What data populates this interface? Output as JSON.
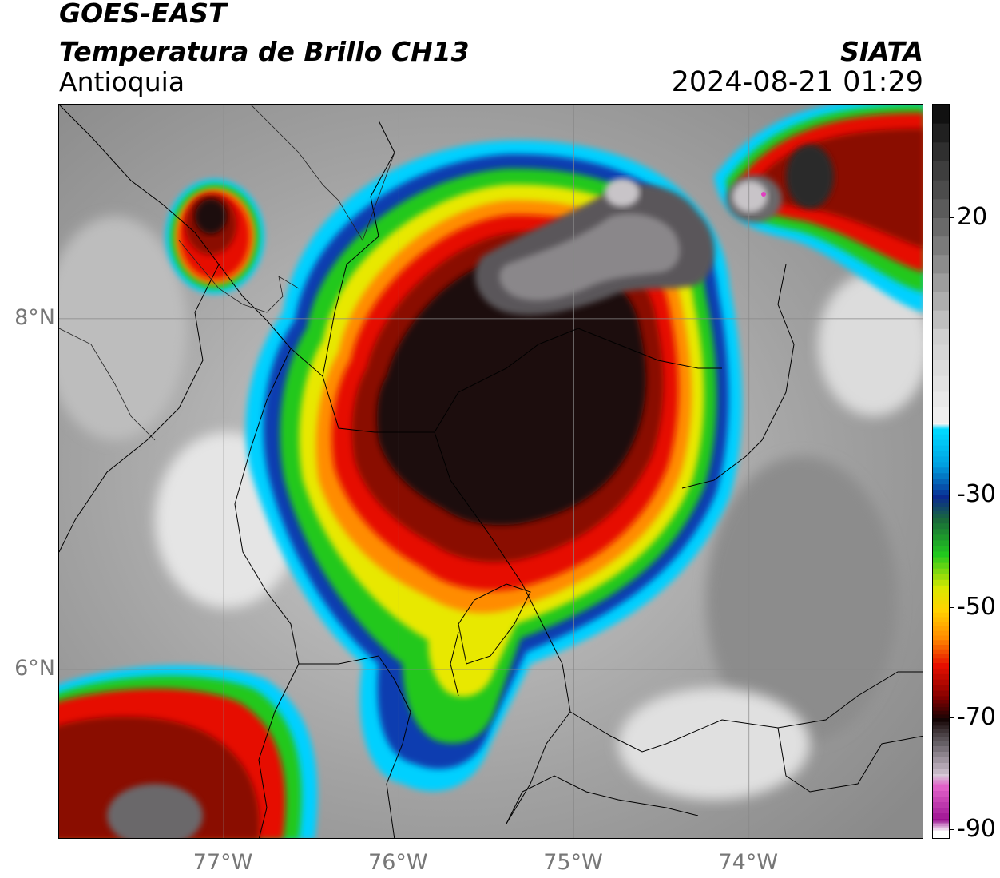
{
  "header": {
    "satellite": "GOES-EAST",
    "product": "Temperatura de Brillo CH13",
    "region": "Antioquia",
    "agency": "SIATA",
    "datetime": "2024-08-21 01:29"
  },
  "map": {
    "latitude_labels": [
      {
        "id": "8n",
        "text": "8°N",
        "value": 8
      },
      {
        "id": "6n",
        "text": "6°N",
        "value": 6
      }
    ],
    "longitude_labels": [
      {
        "id": "77w",
        "text": "77°W",
        "value": -77
      },
      {
        "id": "76w",
        "text": "76°W",
        "value": -76
      },
      {
        "id": "75w",
        "text": "75°W",
        "value": -75
      },
      {
        "id": "74w",
        "text": "74°W",
        "value": -74
      }
    ],
    "extent": {
      "lon_min": -77.94,
      "lon_max": -73.0,
      "lat_min": 5.03,
      "lat_max": 9.22
    },
    "colors": {
      "warm_background": "#a9a9a9",
      "cold_core": "#1a0707",
      "red": "#e60f00",
      "orange": "#ff8c00",
      "yellow": "#e8e800",
      "green": "#22c81e",
      "blue": "#0a3db0",
      "cyan": "#00c8ff",
      "grey_top": "#6d6a6c",
      "magenta": "#e040c0"
    }
  },
  "colorbar": {
    "ticks": [
      {
        "label": "20",
        "value": 20
      },
      {
        "label": "-30",
        "value": -30
      },
      {
        "label": "-50",
        "value": -50
      },
      {
        "label": "-70",
        "value": -70
      },
      {
        "label": "-90",
        "value": -90
      }
    ]
  }
}
